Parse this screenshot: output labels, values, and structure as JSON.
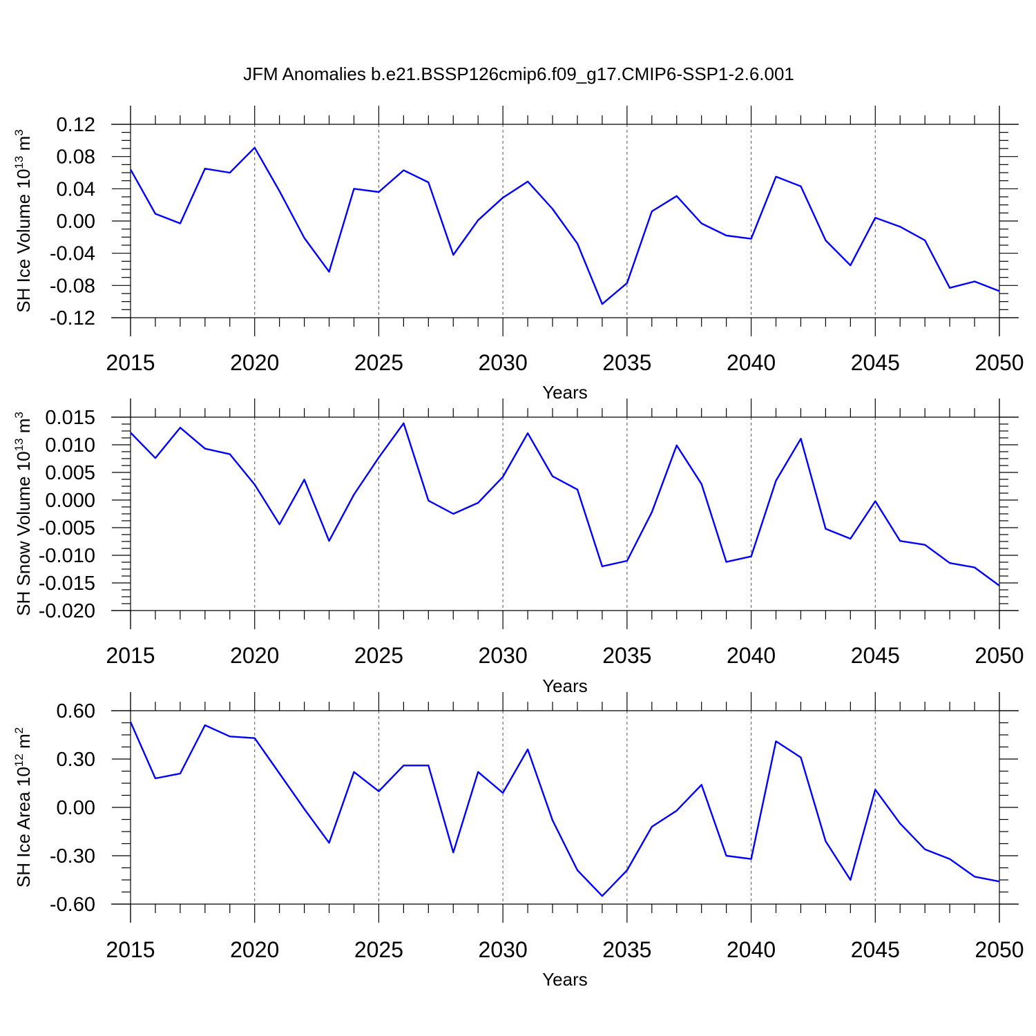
{
  "figure": {
    "title": "JFM Anomalies b.e21.BSSP126cmip6.f09_g17.CMIP6-SSP1-2.6.001"
  },
  "colors": {
    "series": "#0000ff",
    "axes": "#000000",
    "grid": "#555555"
  },
  "chart_data": [
    {
      "type": "line",
      "title": "",
      "xlabel": "Years",
      "ylabel": {
        "text": "SH Ice Volume 10",
        "exp": "13",
        "unit": " m",
        "unit_exp": "3"
      },
      "xlim": [
        2015,
        2050
      ],
      "ylim": [
        -0.12,
        0.12
      ],
      "x_ticks": [
        2015,
        2020,
        2025,
        2030,
        2035,
        2040,
        2045,
        2050
      ],
      "x_tick_labels": [
        "2015",
        "2020",
        "2025",
        "2030",
        "2035",
        "2040",
        "2045",
        "2050"
      ],
      "y_ticks": [
        -0.12,
        -0.08,
        -0.04,
        0.0,
        0.04,
        0.08,
        0.12
      ],
      "y_tick_labels": [
        "-0.12",
        "-0.08",
        "-0.04",
        "0.00",
        "0.04",
        "0.08",
        "0.12"
      ],
      "vertical_grid": "dashed at labeled years",
      "x": [
        2015,
        2016,
        2017,
        2018,
        2019,
        2020,
        2021,
        2022,
        2023,
        2024,
        2025,
        2026,
        2027,
        2028,
        2029,
        2030,
        2031,
        2032,
        2033,
        2034,
        2035,
        2036,
        2037,
        2038,
        2039,
        2040,
        2041,
        2042,
        2043,
        2044,
        2045,
        2046,
        2047,
        2048,
        2049,
        2050
      ],
      "series": [
        {
          "values": [
            0.064,
            0.009,
            -0.003,
            0.065,
            0.06,
            0.091,
            0.037,
            -0.021,
            -0.063,
            0.04,
            0.036,
            0.063,
            0.048,
            -0.042,
            0.001,
            0.029,
            0.049,
            0.015,
            -0.028,
            -0.103,
            -0.077,
            0.012,
            0.031,
            -0.003,
            -0.018,
            -0.022,
            0.055,
            0.043,
            -0.024,
            -0.055,
            0.004,
            -0.007,
            -0.024,
            -0.083,
            -0.075,
            -0.087
          ]
        }
      ]
    },
    {
      "type": "line",
      "title": "",
      "xlabel": "Years",
      "ylabel": {
        "text": "SH Snow Volume 10",
        "exp": "13",
        "unit": " m",
        "unit_exp": "3"
      },
      "xlim": [
        2015,
        2050
      ],
      "ylim": [
        -0.02,
        0.015
      ],
      "x_ticks": [
        2015,
        2020,
        2025,
        2030,
        2035,
        2040,
        2045,
        2050
      ],
      "x_tick_labels": [
        "2015",
        "2020",
        "2025",
        "2030",
        "2035",
        "2040",
        "2045",
        "2050"
      ],
      "y_ticks": [
        -0.02,
        -0.015,
        -0.01,
        -0.005,
        0.0,
        0.005,
        0.01,
        0.015
      ],
      "y_tick_labels": [
        "-0.020",
        "-0.015",
        "-0.010",
        "-0.005",
        "0.000",
        "0.005",
        "0.010",
        "0.015"
      ],
      "vertical_grid": "dashed at labeled years",
      "x": [
        2015,
        2016,
        2017,
        2018,
        2019,
        2020,
        2021,
        2022,
        2023,
        2024,
        2025,
        2026,
        2027,
        2028,
        2029,
        2030,
        2031,
        2032,
        2033,
        2034,
        2035,
        2036,
        2037,
        2038,
        2039,
        2040,
        2041,
        2042,
        2043,
        2044,
        2045,
        2046,
        2047,
        2048,
        2049,
        2050
      ],
      "series": [
        {
          "values": [
            0.0122,
            0.0076,
            0.0131,
            0.0093,
            0.0083,
            0.0028,
            -0.0044,
            0.0037,
            -0.0074,
            0.001,
            0.0077,
            0.0139,
            -0.0001,
            -0.0025,
            -0.0005,
            0.0042,
            0.0121,
            0.0043,
            0.0019,
            -0.012,
            -0.011,
            -0.0022,
            0.0099,
            0.0029,
            -0.0112,
            -0.0102,
            0.0035,
            0.0111,
            -0.0052,
            -0.007,
            -0.0002,
            -0.0074,
            -0.0081,
            -0.0114,
            -0.0122,
            -0.0155
          ]
        }
      ]
    },
    {
      "type": "line",
      "title": "",
      "xlabel": "Years",
      "ylabel": {
        "text": "SH Ice Area 10",
        "exp": "12",
        "unit": " m",
        "unit_exp": "2"
      },
      "xlim": [
        2015,
        2050
      ],
      "ylim": [
        -0.6,
        0.6
      ],
      "x_ticks": [
        2015,
        2020,
        2025,
        2030,
        2035,
        2040,
        2045,
        2050
      ],
      "x_tick_labels": [
        "2015",
        "2020",
        "2025",
        "2030",
        "2035",
        "2040",
        "2045",
        "2050"
      ],
      "y_ticks": [
        -0.6,
        -0.3,
        0.0,
        0.3,
        0.6
      ],
      "y_tick_labels": [
        "-0.60",
        "-0.30",
        "0.00",
        "0.30",
        "0.60"
      ],
      "vertical_grid": "dashed at labeled years",
      "x": [
        2015,
        2016,
        2017,
        2018,
        2019,
        2020,
        2021,
        2022,
        2023,
        2024,
        2025,
        2026,
        2027,
        2028,
        2029,
        2030,
        2031,
        2032,
        2033,
        2034,
        2035,
        2036,
        2037,
        2038,
        2039,
        2040,
        2041,
        2042,
        2043,
        2044,
        2045,
        2046,
        2047,
        2048,
        2049,
        2050
      ],
      "series": [
        {
          "values": [
            0.53,
            0.18,
            0.21,
            0.51,
            0.44,
            0.43,
            0.21,
            -0.01,
            -0.22,
            0.22,
            0.1,
            0.26,
            0.26,
            -0.28,
            0.22,
            0.09,
            0.36,
            -0.08,
            -0.39,
            -0.55,
            -0.39,
            -0.12,
            -0.02,
            0.14,
            -0.3,
            -0.32,
            0.41,
            0.31,
            -0.21,
            -0.45,
            0.11,
            -0.1,
            -0.26,
            -0.32,
            -0.43,
            -0.46
          ]
        }
      ]
    }
  ]
}
